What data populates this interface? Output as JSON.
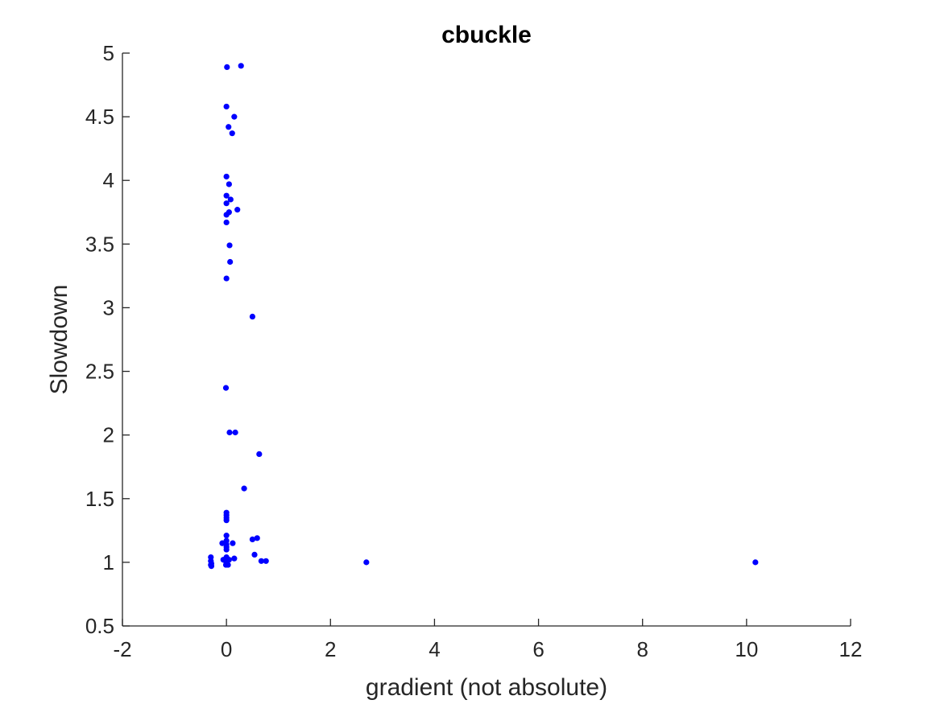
{
  "chart_data": {
    "type": "scatter",
    "title": "cbuckle",
    "xlabel": "gradient (not absolute)",
    "ylabel": "Slowdown",
    "xlim": [
      -2,
      12
    ],
    "ylim": [
      0.5,
      5
    ],
    "xticks": [
      -2,
      0,
      2,
      4,
      6,
      8,
      10,
      12
    ],
    "yticks": [
      0.5,
      1,
      1.5,
      2,
      2.5,
      3,
      3.5,
      4,
      4.5,
      5
    ],
    "xtick_labels": [
      "-2",
      "0",
      "2",
      "4",
      "6",
      "8",
      "10",
      "12"
    ],
    "ytick_labels": [
      "0.5",
      "1",
      "1.5",
      "2",
      "2.5",
      "3",
      "3.5",
      "4",
      "4.5",
      "5"
    ],
    "grid": false,
    "marker_color": "#0000ff",
    "points": [
      {
        "x": 0.01,
        "y": 4.89
      },
      {
        "x": 0.28,
        "y": 4.9
      },
      {
        "x": 0.0,
        "y": 4.58
      },
      {
        "x": 0.15,
        "y": 4.5
      },
      {
        "x": 0.04,
        "y": 4.42
      },
      {
        "x": 0.11,
        "y": 4.37
      },
      {
        "x": 0.0,
        "y": 4.03
      },
      {
        "x": 0.05,
        "y": 3.97
      },
      {
        "x": 0.0,
        "y": 3.88
      },
      {
        "x": 0.08,
        "y": 3.85
      },
      {
        "x": 0.0,
        "y": 3.82
      },
      {
        "x": 0.21,
        "y": 3.77
      },
      {
        "x": 0.05,
        "y": 3.75
      },
      {
        "x": 0.0,
        "y": 3.73
      },
      {
        "x": 0.0,
        "y": 3.67
      },
      {
        "x": 0.06,
        "y": 3.49
      },
      {
        "x": 0.07,
        "y": 3.36
      },
      {
        "x": 0.0,
        "y": 3.23
      },
      {
        "x": 0.5,
        "y": 2.93
      },
      {
        "x": -0.01,
        "y": 2.37
      },
      {
        "x": 0.06,
        "y": 2.02
      },
      {
        "x": 0.17,
        "y": 2.02
      },
      {
        "x": 0.63,
        "y": 1.85
      },
      {
        "x": 0.34,
        "y": 1.58
      },
      {
        "x": 0.0,
        "y": 1.39
      },
      {
        "x": 0.0,
        "y": 1.37
      },
      {
        "x": 0.0,
        "y": 1.35
      },
      {
        "x": 0.0,
        "y": 1.33
      },
      {
        "x": 0.0,
        "y": 1.21
      },
      {
        "x": 0.59,
        "y": 1.19
      },
      {
        "x": 0.5,
        "y": 1.18
      },
      {
        "x": 0.0,
        "y": 1.17
      },
      {
        "x": -0.08,
        "y": 1.15
      },
      {
        "x": 0.12,
        "y": 1.15
      },
      {
        "x": 0.0,
        "y": 1.14
      },
      {
        "x": 0.0,
        "y": 1.12
      },
      {
        "x": 0.0,
        "y": 1.1
      },
      {
        "x": 0.54,
        "y": 1.06
      },
      {
        "x": -0.3,
        "y": 1.04
      },
      {
        "x": 0.0,
        "y": 1.04
      },
      {
        "x": 0.15,
        "y": 1.03
      },
      {
        "x": -0.06,
        "y": 1.02
      },
      {
        "x": 0.0,
        "y": 1.02
      },
      {
        "x": 0.05,
        "y": 1.02
      },
      {
        "x": -0.3,
        "y": 1.01
      },
      {
        "x": 0.0,
        "y": 1.01
      },
      {
        "x": 0.67,
        "y": 1.01
      },
      {
        "x": 0.76,
        "y": 1.01
      },
      {
        "x": 0.0,
        "y": 1.0
      },
      {
        "x": 2.69,
        "y": 1.0
      },
      {
        "x": 10.17,
        "y": 1.0
      },
      {
        "x": -0.29,
        "y": 0.99
      },
      {
        "x": 0.0,
        "y": 0.99
      },
      {
        "x": -0.3,
        "y": 0.98
      },
      {
        "x": -0.01,
        "y": 0.98
      },
      {
        "x": 0.03,
        "y": 0.98
      },
      {
        "x": -0.29,
        "y": 0.97
      }
    ]
  }
}
